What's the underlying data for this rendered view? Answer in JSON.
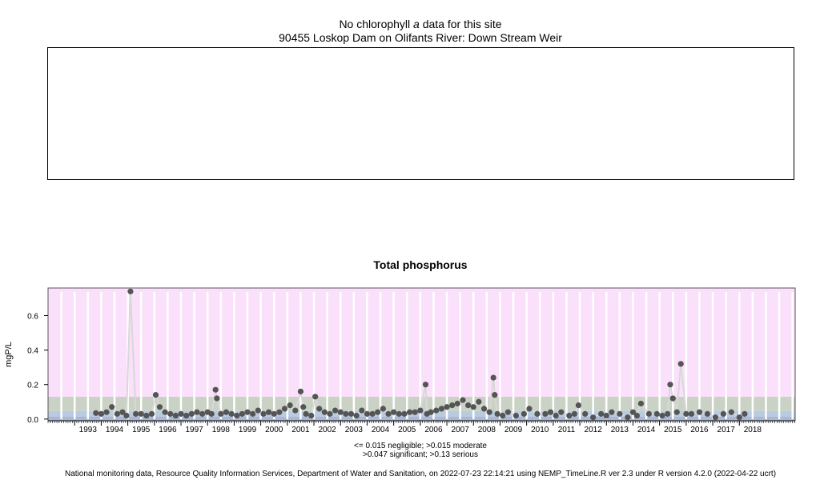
{
  "header": {
    "title_prefix": "No chlorophyll",
    "title_italic": "a",
    "title_suffix": "data for this site",
    "site": "90455 Loskop Dam on Olifants River: Down Stream Weir"
  },
  "footnote": {
    "thresholds_line1": "<= 0.015 negligible; >0.015 moderate",
    "thresholds_line2": ">0.047 significant; >0.13 serious",
    "credit": "National monitoring data, Resource Quality Information Services, Department of Water and Sanitation, on 2022-07-23 22:14:21 using NEMP_TimeLine.R ver 2.3 under R version 4.2.0 (2022-04-22 ucrt)"
  },
  "chart_data": {
    "type": "scatter",
    "title": "Total phosphorus",
    "ylabel": "mgP/L",
    "xlabel": "",
    "xlim": [
      1992.0,
      2020.1
    ],
    "ylim": [
      -0.01,
      0.76
    ],
    "y_ticks": [
      0.0,
      0.2,
      0.4,
      0.6
    ],
    "y_tick_labels": [
      "0.0",
      "0.2",
      "0.4",
      "0.6"
    ],
    "x_tick_labels": [
      "1993",
      "1994",
      "1995",
      "1996",
      "1997",
      "1998",
      "1999",
      "2000",
      "2001",
      "2002",
      "2003",
      "2004",
      "2005",
      "2006",
      "2007",
      "2008",
      "2009",
      "2010",
      "2011",
      "2012",
      "2013",
      "2014",
      "2015",
      "2016",
      "2017",
      "2018"
    ],
    "bands": [
      {
        "label": "negligible",
        "from": -0.01,
        "to": 0.015,
        "color": "#a9b8d4"
      },
      {
        "label": "moderate",
        "from": 0.015,
        "to": 0.047,
        "color": "#b8cbe0"
      },
      {
        "label": "significant",
        "from": 0.047,
        "to": 0.13,
        "color": "#c9d2c4"
      },
      {
        "label": "serious",
        "from": 0.13,
        "to": 0.76,
        "color": "#fbe0fb"
      }
    ],
    "colors": {
      "points": "#555555",
      "line": "#d8d8d8",
      "year_lines": "#ffffff"
    },
    "grid": true,
    "series": [
      {
        "x": [
          1993.8,
          1994.0,
          1994.2,
          1994.4,
          1994.6,
          1994.8,
          1994.95,
          1995.1,
          1995.3,
          1995.5,
          1995.7,
          1995.9,
          1996.05,
          1996.2,
          1996.4,
          1996.6,
          1996.8,
          1997.0,
          1997.2,
          1997.4,
          1997.6,
          1997.8,
          1998.0,
          1998.15,
          1998.3,
          1998.35,
          1998.5,
          1998.7,
          1998.9,
          1999.1,
          1999.3,
          1999.5,
          1999.7,
          1999.9,
          2000.1,
          2000.3,
          2000.5,
          2000.7,
          2000.9,
          2001.1,
          2001.3,
          2001.5,
          2001.6,
          2001.7,
          2001.9,
          2002.05,
          2002.2,
          2002.4,
          2002.6,
          2002.8,
          2003.0,
          2003.2,
          2003.4,
          2003.6,
          2003.8,
          2004.0,
          2004.2,
          2004.4,
          2004.6,
          2004.8,
          2005.0,
          2005.2,
          2005.4,
          2005.6,
          2005.8,
          2006.0,
          2006.2,
          2006.25,
          2006.4,
          2006.6,
          2006.8,
          2007.0,
          2007.2,
          2007.4,
          2007.6,
          2007.8,
          2008.0,
          2008.2,
          2008.4,
          2008.6,
          2008.75,
          2008.8,
          2008.9,
          2009.1,
          2009.3,
          2009.6,
          2009.9,
          2010.1,
          2010.4,
          2010.7,
          2010.9,
          2011.1,
          2011.3,
          2011.6,
          2011.8,
          2011.95,
          2012.2,
          2012.5,
          2012.8,
          2013.0,
          2013.2,
          2013.5,
          2013.8,
          2014.0,
          2014.15,
          2014.3,
          2014.6,
          2014.9,
          2015.1,
          2015.3,
          2015.4,
          2015.5,
          2015.65,
          2015.8,
          2016.0,
          2016.2,
          2016.5,
          2016.8,
          2017.1,
          2017.4,
          2017.7,
          2018.0,
          2018.2
        ],
        "y": [
          0.035,
          0.03,
          0.04,
          0.07,
          0.03,
          0.04,
          0.02,
          0.74,
          0.03,
          0.03,
          0.02,
          0.03,
          0.14,
          0.07,
          0.04,
          0.03,
          0.02,
          0.03,
          0.02,
          0.03,
          0.04,
          0.03,
          0.04,
          0.03,
          0.17,
          0.12,
          0.03,
          0.04,
          0.03,
          0.02,
          0.03,
          0.04,
          0.03,
          0.05,
          0.03,
          0.04,
          0.03,
          0.04,
          0.06,
          0.08,
          0.05,
          0.16,
          0.07,
          0.03,
          0.02,
          0.13,
          0.06,
          0.04,
          0.03,
          0.05,
          0.04,
          0.03,
          0.03,
          0.02,
          0.05,
          0.03,
          0.03,
          0.04,
          0.06,
          0.03,
          0.04,
          0.03,
          0.03,
          0.04,
          0.04,
          0.05,
          0.2,
          0.03,
          0.04,
          0.05,
          0.06,
          0.07,
          0.08,
          0.09,
          0.11,
          0.08,
          0.07,
          0.1,
          0.06,
          0.04,
          0.24,
          0.14,
          0.03,
          0.02,
          0.04,
          0.02,
          0.03,
          0.06,
          0.03,
          0.03,
          0.04,
          0.02,
          0.04,
          0.02,
          0.03,
          0.08,
          0.03,
          0.01,
          0.03,
          0.02,
          0.04,
          0.03,
          0.01,
          0.04,
          0.02,
          0.09,
          0.03,
          0.03,
          0.02,
          0.03,
          0.2,
          0.12,
          0.04,
          0.32,
          0.03,
          0.03,
          0.04,
          0.03,
          0.01,
          0.03,
          0.04,
          0.01,
          0.03
        ]
      }
    ]
  }
}
